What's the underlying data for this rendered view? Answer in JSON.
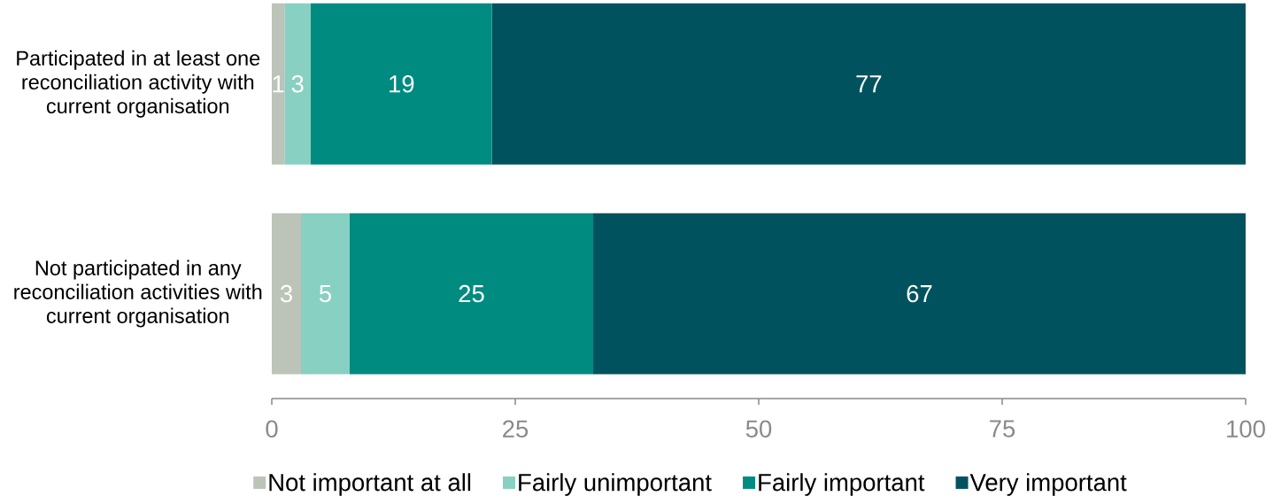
{
  "chart_data": {
    "type": "bar",
    "orientation": "horizontal",
    "stacked": true,
    "categories": [
      "Participated in at least one reconciliation activity with current organisation",
      "Not participated in any reconciliation activities with current organisation"
    ],
    "series": [
      {
        "name": "Not important at all",
        "color": "#bcc3b8",
        "values": [
          1.3,
          3
        ],
        "value_labels": [
          "1",
          "3"
        ]
      },
      {
        "name": "Fairly unimportant",
        "color": "#88d0c2",
        "values": [
          2.7,
          5
        ],
        "value_labels": [
          "3",
          "5"
        ]
      },
      {
        "name": "Fairly important",
        "color": "#008b80",
        "values": [
          18.6,
          25
        ],
        "value_labels": [
          "19",
          "25"
        ]
      },
      {
        "name": "Very important",
        "color": "#00535e",
        "values": [
          77.4,
          67
        ],
        "value_labels": [
          "77",
          "67"
        ]
      }
    ],
    "xlim": [
      0,
      100
    ],
    "xticks": [
      0,
      25,
      50,
      75,
      100
    ],
    "legend": "bottom"
  }
}
